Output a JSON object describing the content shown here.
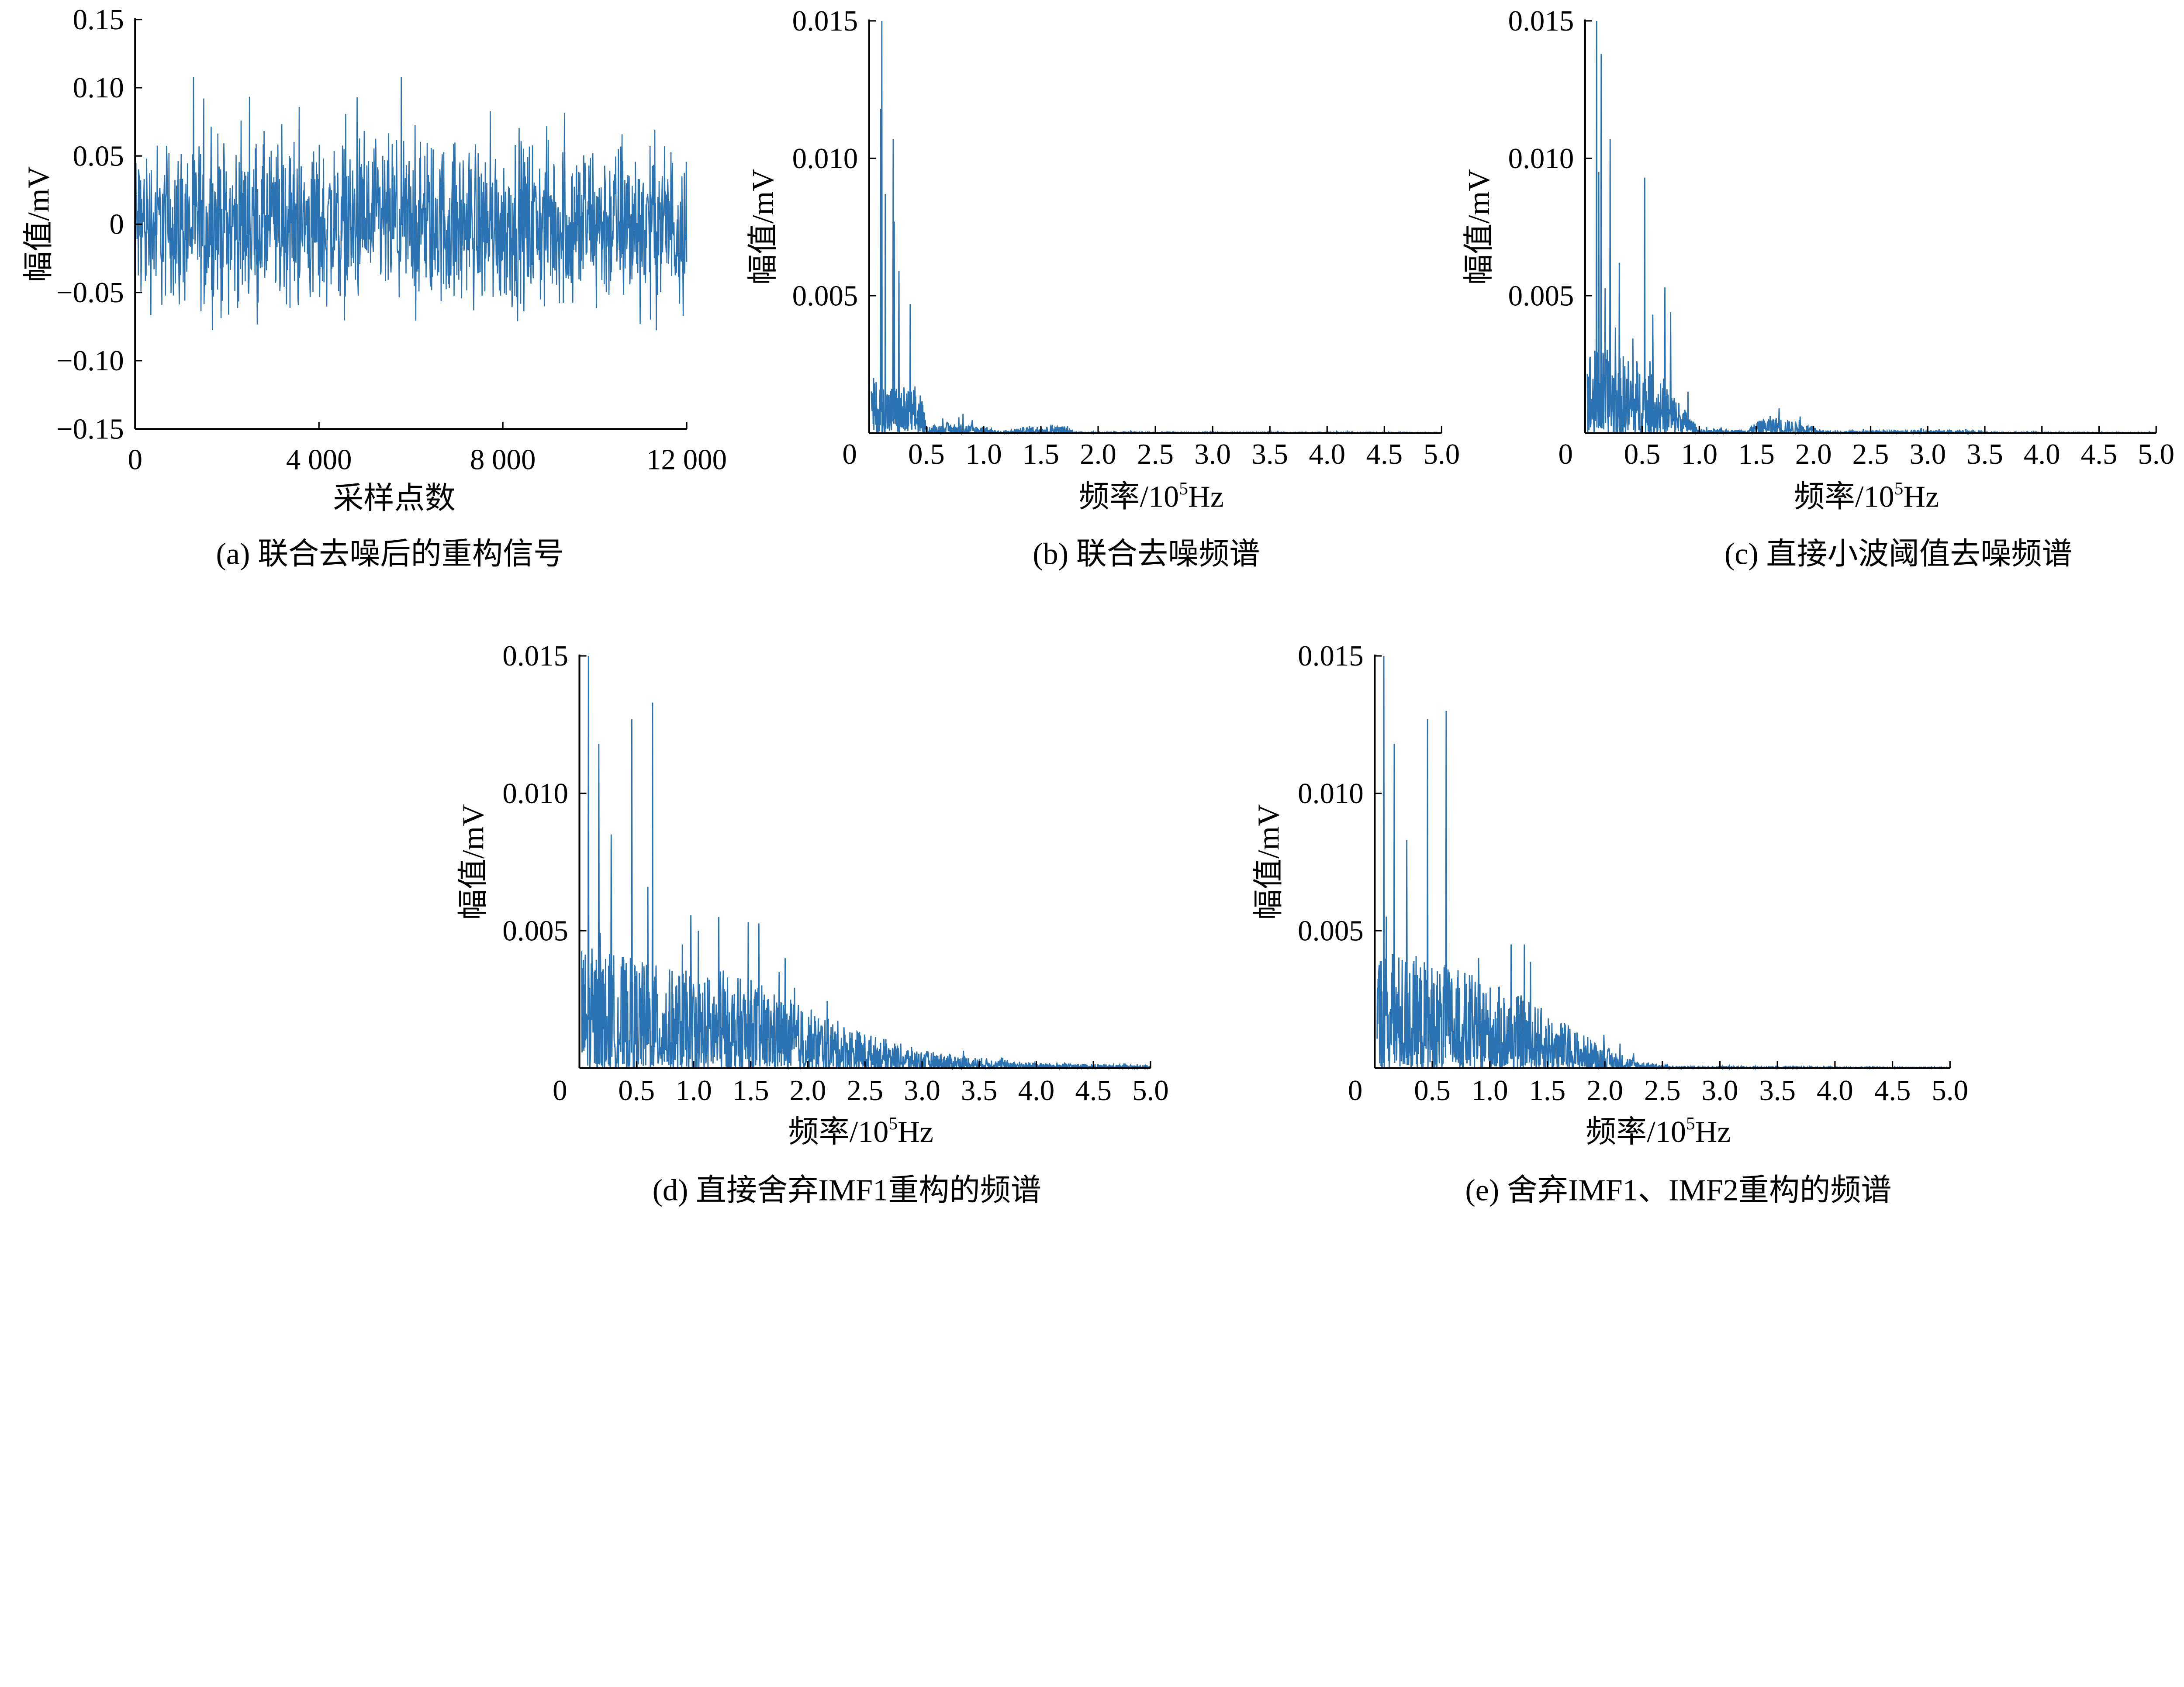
{
  "color": "#2a72b1",
  "chart_data": [
    {
      "id": "a",
      "type": "line",
      "caption": "(a)  联合去噪后的重构信号",
      "xlabel": "采样点数",
      "ylabel": "幅值/mV",
      "xlim": [
        0,
        12000
      ],
      "ylim": [
        -0.15,
        0.15
      ],
      "xticks": [
        "0",
        "4 000",
        "8 000",
        "12 000"
      ],
      "xtick_values": [
        0,
        4000,
        8000,
        12000
      ],
      "yticks": [
        "0.15",
        "0.10",
        "0.05",
        "0",
        "−0.05",
        "−0.10",
        "−0.15"
      ],
      "ytick_values": [
        0.15,
        0.1,
        0.05,
        0,
        -0.05,
        -0.1,
        -0.15
      ],
      "signal": {
        "description_rms": 0.03,
        "max_abs": 0.125
      }
    },
    {
      "id": "b",
      "type": "line",
      "caption": "(b)  联合去噪频谱",
      "xlabel_main": "频率/10",
      "xlabel_sup": "5",
      "xlabel_unit": "Hz",
      "ylabel": "幅值/mV",
      "xlim": [
        0,
        5.0
      ],
      "ylim": [
        0,
        0.015
      ],
      "xticks": [
        "0",
        "0.5",
        "1.0",
        "1.5",
        "2.0",
        "2.5",
        "3.0",
        "3.5",
        "4.0",
        "4.5",
        "5.0"
      ],
      "yticks": [
        "0.015",
        "0.010",
        "0.005"
      ],
      "ytick_values": [
        0.015,
        0.01,
        0.005
      ],
      "peaks": [
        [
          0.11,
          0.015
        ],
        [
          0.1,
          0.0118
        ],
        [
          0.14,
          0.0087
        ],
        [
          0.21,
          0.0107
        ],
        [
          0.22,
          0.0077
        ],
        [
          0.26,
          0.0059
        ],
        [
          0.36,
          0.0047
        ],
        [
          0.4,
          0.0017
        ],
        [
          0.82,
          0.0007
        ],
        [
          1.6,
          0.0003
        ]
      ],
      "floor": [
        [
          0,
          0.0016
        ],
        [
          0.45,
          0.0012
        ],
        [
          0.5,
          0.0002
        ],
        [
          0.7,
          0.0003
        ],
        [
          1.0,
          0.0002
        ],
        [
          1.15,
          3e-05
        ],
        [
          1.4,
          0.0002
        ],
        [
          1.7,
          0.0002
        ],
        [
          1.8,
          3e-05
        ],
        [
          5.0,
          2e-05
        ]
      ]
    },
    {
      "id": "c",
      "type": "line",
      "caption": "(c)  直接小波阈值去噪频谱",
      "xlabel_main": "频率/10",
      "xlabel_sup": "5",
      "xlabel_unit": "Hz",
      "ylabel": "幅值/mV",
      "xlim": [
        0,
        5.0
      ],
      "ylim": [
        0,
        0.015
      ],
      "xticks": [
        "0",
        "0.5",
        "1.0",
        "1.5",
        "2.0",
        "2.5",
        "3.0",
        "3.5",
        "4.0",
        "4.5",
        "5.0"
      ],
      "yticks": [
        "0.015",
        "0.010",
        "0.005"
      ],
      "ytick_values": [
        0.015,
        0.01,
        0.005
      ],
      "peaks": [
        [
          0.1,
          0.015
        ],
        [
          0.14,
          0.0138
        ],
        [
          0.22,
          0.0107
        ],
        [
          0.12,
          0.0095
        ],
        [
          0.52,
          0.0093
        ],
        [
          0.3,
          0.0062
        ],
        [
          0.7,
          0.0053
        ],
        [
          0.75,
          0.0044
        ],
        [
          0.9,
          0.0015
        ],
        [
          1.7,
          0.0009
        ]
      ],
      "floor": [
        [
          0,
          0.0025
        ],
        [
          0.6,
          0.002
        ],
        [
          0.85,
          0.0008
        ],
        [
          1.0,
          0.0001
        ],
        [
          1.4,
          0.0001
        ],
        [
          1.6,
          0.0005
        ],
        [
          1.9,
          0.0003
        ],
        [
          2.1,
          5e-05
        ],
        [
          2.9,
          8e-05
        ],
        [
          3.3,
          8e-05
        ],
        [
          3.5,
          3e-05
        ],
        [
          5.0,
          2e-05
        ]
      ]
    },
    {
      "id": "d",
      "type": "line",
      "caption": "(d)  直接舍弃IMF1重构的频谱",
      "xlabel_main": "频率/10",
      "xlabel_sup": "5",
      "xlabel_unit": "Hz",
      "ylabel": "幅值/mV",
      "xlim": [
        0,
        5.0
      ],
      "ylim": [
        0,
        0.015
      ],
      "xticks": [
        "0",
        "0.5",
        "1.0",
        "1.5",
        "2.0",
        "2.5",
        "3.0",
        "3.5",
        "4.0",
        "4.5",
        "5.0"
      ],
      "yticks": [
        "0.015",
        "0.010",
        "0.005"
      ],
      "ytick_values": [
        0.015,
        0.01,
        0.005
      ],
      "peaks": [
        [
          0.08,
          0.015
        ],
        [
          0.17,
          0.0118
        ],
        [
          0.46,
          0.0127
        ],
        [
          0.64,
          0.0133
        ],
        [
          0.28,
          0.0085
        ],
        [
          0.6,
          0.0066
        ],
        [
          1.22,
          0.0055
        ],
        [
          1.8,
          0.004
        ],
        [
          0.9,
          0.0045
        ]
      ],
      "floor": [
        [
          0,
          0.0035
        ],
        [
          0.8,
          0.0028
        ],
        [
          1.5,
          0.0025
        ],
        [
          2.0,
          0.0017
        ],
        [
          2.5,
          0.001
        ],
        [
          3.0,
          0.0005
        ],
        [
          3.5,
          0.0003
        ],
        [
          4.0,
          0.00015
        ],
        [
          5.0,
          8e-05
        ]
      ]
    },
    {
      "id": "e",
      "type": "line",
      "caption": "(e)  舍弃IMF1、IMF2重构的频谱",
      "xlabel_main": "频率/10",
      "xlabel_sup": "5",
      "xlabel_unit": "Hz",
      "ylabel": "幅值/mV",
      "xlim": [
        0,
        5.0
      ],
      "ylim": [
        0,
        0.015
      ],
      "xticks": [
        "0",
        "0.5",
        "1.0",
        "1.5",
        "2.0",
        "2.5",
        "3.0",
        "3.5",
        "4.0",
        "4.5",
        "5.0"
      ],
      "yticks": [
        "0.015",
        "0.010",
        "0.005"
      ],
      "ytick_values": [
        0.015,
        0.01,
        0.005
      ],
      "peaks": [
        [
          0.08,
          0.015
        ],
        [
          0.17,
          0.0118
        ],
        [
          0.46,
          0.0127
        ],
        [
          0.62,
          0.013
        ],
        [
          0.28,
          0.0083
        ],
        [
          1.3,
          0.0045
        ],
        [
          0.9,
          0.004
        ]
      ],
      "floor": [
        [
          0,
          0.0035
        ],
        [
          0.8,
          0.0027
        ],
        [
          1.3,
          0.002
        ],
        [
          1.7,
          0.0012
        ],
        [
          2.0,
          0.0006
        ],
        [
          2.3,
          0.0002
        ],
        [
          2.6,
          5e-05
        ],
        [
          5.0,
          2e-05
        ]
      ]
    }
  ]
}
